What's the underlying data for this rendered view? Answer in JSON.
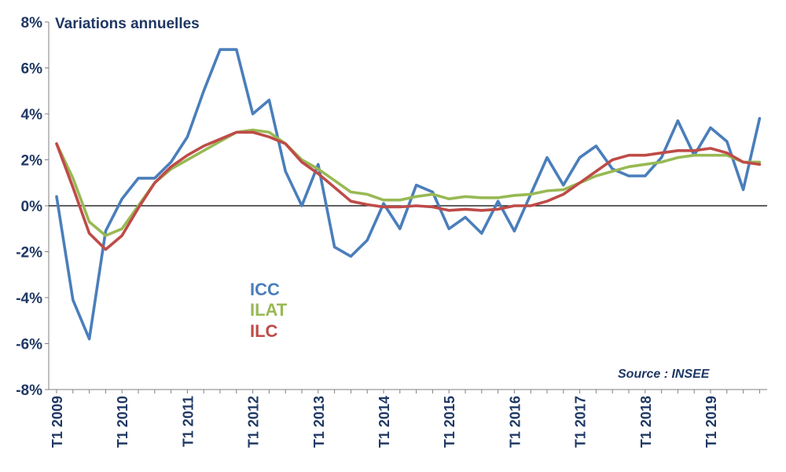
{
  "chart_data": {
    "type": "line",
    "title": "Variations annuelles",
    "source": "Source : INSEE",
    "ylim": [
      -8,
      8
    ],
    "yticks": [
      -8,
      -6,
      -4,
      -2,
      0,
      2,
      4,
      6,
      8
    ],
    "ytick_labels": [
      "-8%",
      "-6%",
      "-4%",
      "-2%",
      "0%",
      "2%",
      "4%",
      "6%",
      "8%"
    ],
    "xtick_labels": [
      "T1 2009",
      "T1 2010",
      "T1 2011",
      "T1 2012",
      "T1 2013",
      "T1 2014",
      "T1 2015",
      "T1 2016",
      "T1 2017",
      "T1 2018",
      "T1 2019"
    ],
    "x": [
      "T1 2009",
      "T2 2009",
      "T3 2009",
      "T4 2009",
      "T1 2010",
      "T2 2010",
      "T3 2010",
      "T4 2010",
      "T1 2011",
      "T2 2011",
      "T3 2011",
      "T4 2011",
      "T1 2012",
      "T2 2012",
      "T3 2012",
      "T4 2012",
      "T1 2013",
      "T2 2013",
      "T3 2013",
      "T4 2013",
      "T1 2014",
      "T2 2014",
      "T3 2014",
      "T4 2014",
      "T1 2015",
      "T2 2015",
      "T3 2015",
      "T4 2015",
      "T1 2016",
      "T2 2016",
      "T3 2016",
      "T4 2016",
      "T1 2017",
      "T2 2017",
      "T3 2017",
      "T4 2017",
      "T1 2018",
      "T2 2018",
      "T3 2018",
      "T4 2018",
      "T1 2019",
      "T2 2019",
      "T3 2019",
      "T4 2019"
    ],
    "grid": false,
    "legend_position": "center-left",
    "series": [
      {
        "name": "ICC",
        "color": "#4a7ebb",
        "values": [
          0.4,
          -4.1,
          -5.8,
          -1.1,
          0.3,
          1.2,
          1.2,
          1.9,
          3.0,
          5.0,
          6.8,
          6.8,
          4.0,
          4.6,
          1.5,
          0.0,
          1.8,
          -1.8,
          -2.2,
          -1.5,
          0.1,
          -1.0,
          0.9,
          0.6,
          -1.0,
          -0.5,
          -1.2,
          0.2,
          -1.1,
          0.5,
          2.1,
          0.9,
          2.1,
          2.6,
          1.6,
          1.3,
          1.3,
          2.1,
          3.7,
          2.2,
          3.4,
          2.8,
          0.7,
          3.8
        ]
      },
      {
        "name": "ILAT",
        "color": "#98b954",
        "values": [
          2.7,
          1.2,
          -0.7,
          -1.3,
          -1.0,
          0.0,
          1.0,
          1.6,
          2.0,
          2.4,
          2.8,
          3.2,
          3.3,
          3.2,
          2.7,
          2.0,
          1.6,
          1.1,
          0.6,
          0.5,
          0.25,
          0.25,
          0.4,
          0.5,
          0.3,
          0.4,
          0.35,
          0.35,
          0.45,
          0.5,
          0.65,
          0.7,
          1.0,
          1.3,
          1.5,
          1.7,
          1.8,
          1.9,
          2.1,
          2.2,
          2.2,
          2.2,
          1.9,
          1.9
        ]
      },
      {
        "name": "ILC",
        "color": "#be4b48",
        "values": [
          2.7,
          0.8,
          -1.2,
          -1.9,
          -1.3,
          -0.1,
          1.0,
          1.7,
          2.2,
          2.6,
          2.9,
          3.2,
          3.2,
          3.0,
          2.7,
          1.9,
          1.4,
          0.8,
          0.2,
          0.05,
          -0.05,
          -0.05,
          0.0,
          -0.05,
          -0.2,
          -0.15,
          -0.2,
          -0.15,
          0.0,
          0.0,
          0.2,
          0.5,
          1.0,
          1.5,
          2.0,
          2.2,
          2.2,
          2.3,
          2.4,
          2.4,
          2.5,
          2.3,
          1.9,
          1.8
        ]
      }
    ]
  }
}
